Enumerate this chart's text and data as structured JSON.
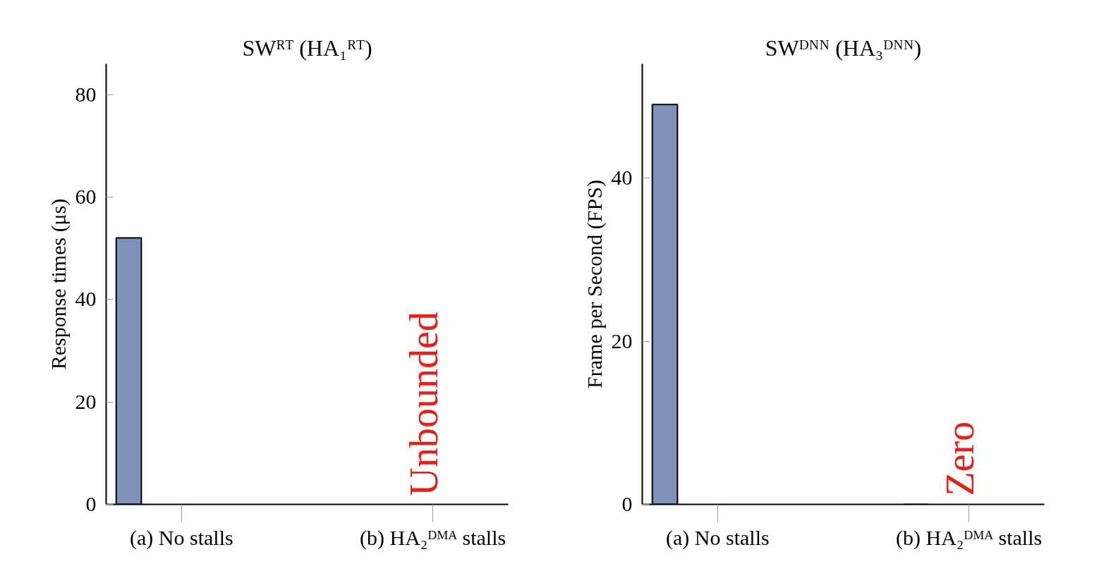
{
  "chart_data": [
    {
      "type": "bar",
      "title": "SWᴿᵀ (HA₁ᴿᵀ)",
      "ylabel": "Response times (μs)",
      "categories": [
        "(a) No stalls",
        "(b) HA₂ᴰᴹᴬ stalls"
      ],
      "values": [
        52,
        null
      ],
      "color": "#7f91b9",
      "ylim": [
        0,
        86
      ],
      "yticks": [
        0,
        20,
        40,
        60,
        80
      ],
      "grid": false,
      "annotations": [
        "Unbounded"
      ]
    },
    {
      "type": "bar",
      "title": "SWᴰᴺᴺ (HA₃ᴰᴺᴺ)",
      "ylabel": "Frame per Second (FPS)",
      "categories": [
        "(a) No stalls",
        "(b) HA₂ᴰᴹᴬ stalls"
      ],
      "values": [
        49,
        0
      ],
      "color": "#7f91b9",
      "ylim": [
        0,
        54
      ],
      "yticks": [
        0,
        20,
        40
      ],
      "grid": false,
      "annotations": [
        "Zero"
      ]
    }
  ]
}
